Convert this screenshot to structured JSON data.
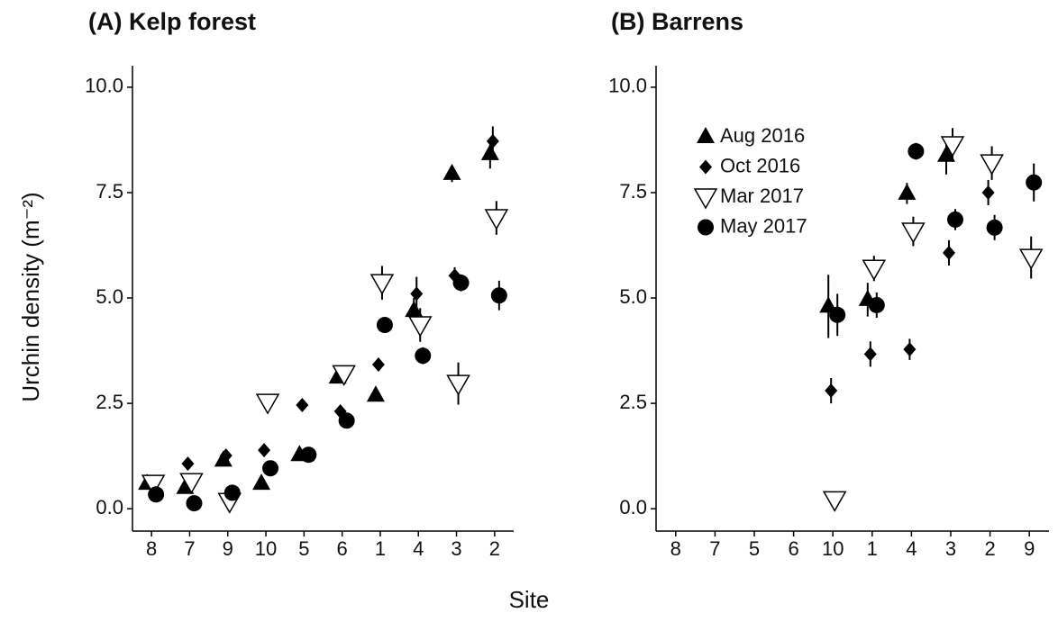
{
  "xlabel": "Site",
  "ylabel": "Urchin density (m⁻²)",
  "chart_data": [
    {
      "type": "scatter",
      "title": "(A) Kelp forest",
      "categories": [
        "8",
        "7",
        "9",
        "10",
        "5",
        "6",
        "1",
        "4",
        "3",
        "2"
      ],
      "ylim": [
        -0.53,
        10.51
      ],
      "yticks": [
        {
          "value": 0,
          "label": "0.0"
        },
        2.5,
        {
          "value": 5,
          "label": "5.0"
        },
        7.5,
        {
          "value": 10,
          "label": "10.0"
        }
      ],
      "series": [
        {
          "marker": "triangle-up",
          "color": "#000000",
          "values": [
            0.6,
            0.5,
            1.15,
            0.6,
            1.28,
            3.12,
            2.69,
            4.7,
            7.95,
            8.42
          ],
          "errors": [
            null,
            null,
            null,
            null,
            null,
            null,
            null,
            0.3,
            0.2,
            0.35
          ]
        },
        {
          "marker": "diamond",
          "color": "#000000",
          "values": [
            0.64,
            1.07,
            1.26,
            1.39,
            2.46,
            2.31,
            3.42,
            5.1,
            5.53,
            8.72
          ],
          "errors": [
            null,
            null,
            null,
            null,
            null,
            null,
            null,
            0.4,
            0.2,
            0.35
          ]
        },
        {
          "marker": "triangle-down-open",
          "color": "#000000",
          "values": [
            0.6,
            0.64,
            0.17,
            2.52,
            null,
            3.2,
            5.36,
            4.36,
            2.97,
            6.9
          ],
          "errors": [
            null,
            null,
            null,
            null,
            null,
            null,
            0.4,
            0.4,
            0.5,
            0.4
          ]
        },
        {
          "marker": "circle",
          "color": "#000000",
          "values": [
            0.34,
            0.13,
            0.38,
            0.96,
            1.28,
            2.09,
            4.36,
            3.63,
            5.36,
            5.06
          ],
          "errors": [
            null,
            null,
            null,
            null,
            null,
            null,
            null,
            0.2,
            0.2,
            0.35
          ]
        }
      ]
    },
    {
      "type": "scatter",
      "title": "(B) Barrens",
      "legend": "upper left",
      "categories": [
        "8",
        "7",
        "5",
        "6",
        "10",
        "1",
        "4",
        "3",
        "2",
        "9"
      ],
      "ylim": [
        -0.53,
        10.51
      ],
      "yticks": [
        {
          "value": 0,
          "label": "0.0"
        },
        2.5,
        {
          "value": 5,
          "label": "5.0"
        },
        7.5,
        {
          "value": 10,
          "label": "10.0"
        }
      ],
      "series": [
        {
          "name": "Aug 2016",
          "marker": "triangle-up",
          "color": "#000000",
          "values": [
            null,
            null,
            null,
            null,
            4.8,
            4.96,
            7.48,
            8.38,
            null,
            null
          ],
          "errors": [
            null,
            null,
            null,
            null,
            0.75,
            0.4,
            0.25,
            0.45,
            null,
            null
          ]
        },
        {
          "name": "Oct 2016",
          "marker": "diamond",
          "color": "#000000",
          "values": [
            null,
            null,
            null,
            null,
            2.8,
            3.67,
            3.78,
            6.07,
            7.5,
            null
          ],
          "errors": [
            null,
            null,
            null,
            null,
            0.3,
            0.3,
            0.25,
            0.3,
            0.3,
            null
          ]
        },
        {
          "name": "Mar 2017",
          "marker": "triangle-down-open",
          "color": "#000000",
          "values": [
            null,
            null,
            null,
            null,
            0.21,
            5.7,
            6.58,
            8.63,
            8.2,
            5.96
          ],
          "errors": [
            null,
            null,
            null,
            null,
            0.1,
            0.3,
            0.35,
            0.4,
            0.4,
            0.5
          ]
        },
        {
          "name": "May 2017",
          "marker": "circle",
          "color": "#000000",
          "values": [
            null,
            null,
            null,
            null,
            4.6,
            4.83,
            8.48,
            6.86,
            6.67,
            7.74
          ],
          "errors": [
            null,
            null,
            null,
            null,
            0.5,
            0.3,
            0.2,
            0.25,
            0.3,
            0.45
          ]
        }
      ]
    }
  ]
}
